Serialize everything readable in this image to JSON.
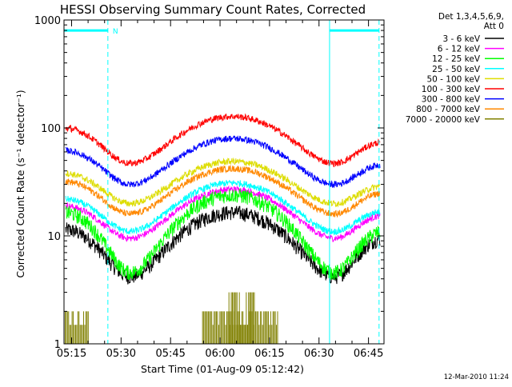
{
  "chart_data": {
    "type": "line",
    "title": "HESSI Observing Summary Count Rates, Corrected",
    "xlabel": "Start Time (01-Aug-09 05:12:42)",
    "ylabel": "Corrected Count Rate (s⁻¹ detector⁻¹)",
    "yscale": "log",
    "ylim": [
      1,
      1000
    ],
    "xlim_minutes": [
      0,
      97
    ],
    "x_ticks": [
      "05:15",
      "05:30",
      "05:45",
      "06:00",
      "06:15",
      "06:30",
      "06:45"
    ],
    "y_ticks": [
      "1",
      "10",
      "100",
      "1000"
    ],
    "legend_header": [
      "Det 1,3,4,5,6,9,",
      "Att 0"
    ],
    "series": [
      {
        "name": "3 - 6 keV",
        "color": "#000000",
        "center": [
          11.5,
          4.2,
          16.5,
          4.2,
          9.5
        ]
      },
      {
        "name": "6 - 12 keV",
        "color": "#ff00ff",
        "center": [
          19.0,
          9.5,
          27.0,
          9.5,
          15.5
        ]
      },
      {
        "name": "12 - 25 keV",
        "color": "#00ff00",
        "center": [
          16.5,
          4.6,
          24.0,
          4.6,
          11.0
        ]
      },
      {
        "name": "25 - 50 keV",
        "color": "#00ffff",
        "center": [
          22.0,
          11.0,
          31.0,
          11.0,
          17.0
        ]
      },
      {
        "name": "50 - 100 keV",
        "color": "#dddd00",
        "center": [
          38.0,
          20.0,
          49.0,
          20.0,
          29.0
        ]
      },
      {
        "name": "100 - 300 keV",
        "color": "#ff0000",
        "center": [
          100.0,
          47.0,
          128.0,
          47.0,
          74.0
        ]
      },
      {
        "name": "300 - 800 keV",
        "color": "#0000ff",
        "center": [
          62.0,
          30.0,
          80.0,
          30.0,
          46.0
        ]
      },
      {
        "name": "800 - 7000 keV",
        "color": "#ff8800",
        "center": [
          32.0,
          16.0,
          42.0,
          16.0,
          25.0
        ]
      },
      {
        "name": "7000 - 20000 keV",
        "color": "#808000",
        "center": [
          1.6,
          1.0,
          2.2,
          1.0,
          1.0
        ]
      }
    ],
    "annotations": {
      "saa_marker": "N",
      "cyan_segments_minutes": [
        [
          0,
          13.3
        ],
        [
          80.5,
          95.5
        ]
      ],
      "dashed_lines_minutes": [
        13.3,
        95.5
      ],
      "solid_lines_minutes": [
        0,
        80.5
      ],
      "segment_level": 800
    },
    "footer": "12-Mar-2010 11:24"
  }
}
